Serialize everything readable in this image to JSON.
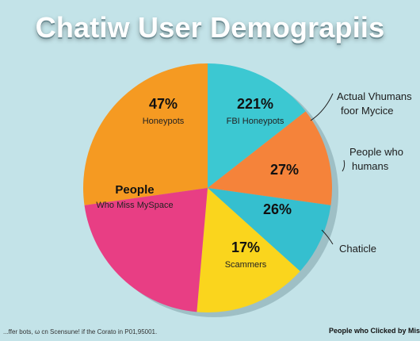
{
  "chart_data": {
    "type": "pie",
    "title": "Chatiw User Demograpiis",
    "slices": [
      {
        "value": 47,
        "pct_label": "47%",
        "name": "Honeypots",
        "color": "#f59a22"
      },
      {
        "value": 221,
        "pct_label": "221%",
        "name": "FBI Honeypots",
        "color": "#3cc8d2"
      },
      {
        "value": 27,
        "pct_label": "27%",
        "name": "",
        "color": "#f5833a"
      },
      {
        "value": 26,
        "pct_label": "26%",
        "name": "",
        "color": "#35bfcf"
      },
      {
        "value": 17,
        "pct_label": "17%",
        "name": "Scammers",
        "color": "#fad51d"
      },
      {
        "value": null,
        "pct_label": "",
        "name_bold": "People",
        "name": "Who Miss MySpace",
        "color": "#e83e84"
      }
    ],
    "callouts": [
      {
        "lines": [
          "Actual Vhumans",
          "foor Mycice"
        ]
      },
      {
        "lines": [
          "People who",
          "humans"
        ]
      },
      {
        "lines": [
          "Chaticle"
        ]
      }
    ],
    "footnote_left": "...ffer bots, ω cn Scensune! if the Corato in P01,95001.",
    "footnote_right": "People who Clicked by Mis"
  }
}
